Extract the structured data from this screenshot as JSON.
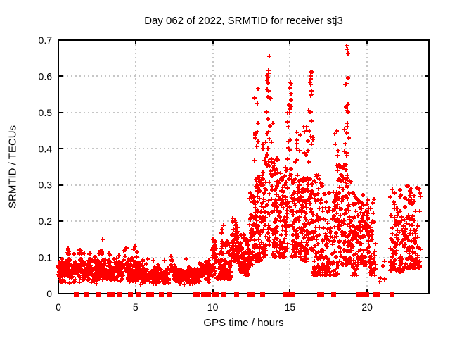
{
  "chart_data": {
    "type": "scatter",
    "title": "Day 062 of 2022, SRMTID for receiver stj3",
    "xlabel": "GPS time / hours",
    "ylabel": "SRMTID / TECUs",
    "xlim": [
      0,
      24
    ],
    "ylim": [
      0,
      0.7
    ],
    "xticks": {
      "values": [
        0,
        5,
        10,
        15,
        20
      ],
      "labels": [
        "0",
        "5",
        "10",
        "15",
        "20"
      ]
    },
    "yticks": {
      "values": [
        0,
        0.1,
        0.2,
        0.3,
        0.4,
        0.5,
        0.6,
        0.7
      ],
      "labels": [
        "0",
        "0.1",
        "0.2",
        "0.3",
        "0.4",
        "0.5",
        "0.6",
        "0.7"
      ]
    },
    "grid": true,
    "legend": "none",
    "colors": {
      "marker": "#ff0000",
      "grid": "#b4b4b4",
      "axis": "#000000",
      "background": "#ffffff"
    },
    "marker": {
      "shape": "plus",
      "size": 7
    },
    "zero_marker": {
      "shape": "filled-square",
      "size": 7
    },
    "zero_marker_hours": [
      1.15,
      1.8,
      2.6,
      3.3,
      3.45,
      3.95,
      4.65,
      5.2,
      5.8,
      6.0,
      6.65,
      7.2,
      8.85,
      9.0,
      9.4,
      9.55,
      9.7,
      10.1,
      10.25,
      10.65,
      11.5,
      12.4,
      12.55,
      13.2,
      14.7,
      14.85,
      15.1,
      16.9,
      17.05,
      17.8,
      19.4,
      19.55,
      19.8,
      19.95,
      20.5,
      20.65,
      21.6
    ],
    "cluster_format": [
      "hour_start",
      "hour_end",
      "n_points",
      "y_min",
      "y_max",
      "bias (0=triangular, >0=power toward y_min)"
    ],
    "point_clusters": [
      [
        0.0,
        1.0,
        100,
        0.025,
        0.1,
        0
      ],
      [
        0.55,
        0.7,
        6,
        0.09,
        0.125,
        1
      ],
      [
        0.0,
        5.3,
        20,
        0.08,
        0.115,
        1
      ],
      [
        1.0,
        2.6,
        150,
        0.025,
        0.1,
        0
      ],
      [
        1.35,
        1.5,
        7,
        0.09,
        0.125,
        1
      ],
      [
        2.7,
        2.9,
        9,
        0.07,
        0.155,
        1.2
      ],
      [
        2.6,
        4.2,
        140,
        0.025,
        0.095,
        0
      ],
      [
        4.2,
        4.45,
        10,
        0.06,
        0.14,
        1.2
      ],
      [
        4.45,
        5.3,
        80,
        0.028,
        0.1,
        0
      ],
      [
        4.85,
        5.1,
        8,
        0.07,
        0.135,
        1.1
      ],
      [
        5.3,
        7.2,
        160,
        0.022,
        0.075,
        0
      ],
      [
        5.3,
        9.0,
        25,
        0.06,
        0.095,
        1
      ],
      [
        7.25,
        7.4,
        7,
        0.06,
        0.115,
        1.1
      ],
      [
        7.4,
        9.0,
        140,
        0.022,
        0.075,
        0
      ],
      [
        9.0,
        9.9,
        85,
        0.028,
        0.095,
        0
      ],
      [
        9.95,
        10.25,
        30,
        0.04,
        0.155,
        1.4
      ],
      [
        10.3,
        11.25,
        95,
        0.04,
        0.145,
        1.6
      ],
      [
        10.55,
        10.7,
        6,
        0.12,
        0.2,
        1
      ],
      [
        11.25,
        11.65,
        55,
        0.09,
        0.21,
        1.4
      ],
      [
        11.65,
        12.05,
        55,
        0.06,
        0.17,
        1.4
      ],
      [
        12.05,
        12.35,
        40,
        0.05,
        0.16,
        1.4
      ],
      [
        12.35,
        12.6,
        40,
        0.08,
        0.29,
        1.4
      ],
      [
        12.6,
        13.1,
        70,
        0.09,
        0.33,
        1.5
      ],
      [
        12.7,
        12.95,
        11,
        0.33,
        0.61,
        1
      ],
      [
        13.1,
        13.45,
        55,
        0.1,
        0.42,
        1.5
      ],
      [
        13.45,
        13.9,
        45,
        0.12,
        0.55,
        1.2
      ],
      [
        13.5,
        13.65,
        9,
        0.55,
        0.675,
        1
      ],
      [
        13.9,
        14.3,
        65,
        0.1,
        0.38,
        1.5
      ],
      [
        14.3,
        14.85,
        70,
        0.1,
        0.35,
        1.5
      ],
      [
        14.85,
        15.1,
        22,
        0.18,
        0.52,
        1.2
      ],
      [
        14.95,
        15.08,
        7,
        0.5,
        0.585,
        1
      ],
      [
        15.1,
        15.75,
        85,
        0.1,
        0.32,
        1.5
      ],
      [
        15.3,
        15.7,
        9,
        0.32,
        0.45,
        1
      ],
      [
        15.75,
        16.15,
        65,
        0.09,
        0.33,
        1.5
      ],
      [
        15.9,
        16.1,
        7,
        0.33,
        0.47,
        1
      ],
      [
        16.15,
        16.5,
        45,
        0.12,
        0.5,
        1.3
      ],
      [
        16.2,
        16.45,
        13,
        0.5,
        0.615,
        1
      ],
      [
        16.5,
        17.4,
        110,
        0.05,
        0.33,
        1.6
      ],
      [
        17.4,
        18.2,
        85,
        0.05,
        0.28,
        1.6
      ],
      [
        17.9,
        18.2,
        11,
        0.3,
        0.46,
        1.1
      ],
      [
        18.2,
        19.0,
        105,
        0.08,
        0.36,
        1.6
      ],
      [
        18.55,
        18.8,
        13,
        0.38,
        0.56,
        1
      ],
      [
        18.6,
        18.75,
        6,
        0.56,
        0.685,
        1
      ],
      [
        19.0,
        19.35,
        40,
        0.05,
        0.28,
        1.5
      ],
      [
        19.35,
        20.15,
        95,
        0.08,
        0.28,
        1.6
      ],
      [
        20.15,
        20.55,
        35,
        0.05,
        0.27,
        1.5
      ],
      [
        20.7,
        21.3,
        6,
        0.03,
        0.1,
        1.2
      ],
      [
        21.5,
        22.3,
        90,
        0.06,
        0.3,
        1.6
      ],
      [
        22.35,
        23.45,
        120,
        0.07,
        0.3,
        1.6
      ]
    ],
    "render_seed": 42
  }
}
